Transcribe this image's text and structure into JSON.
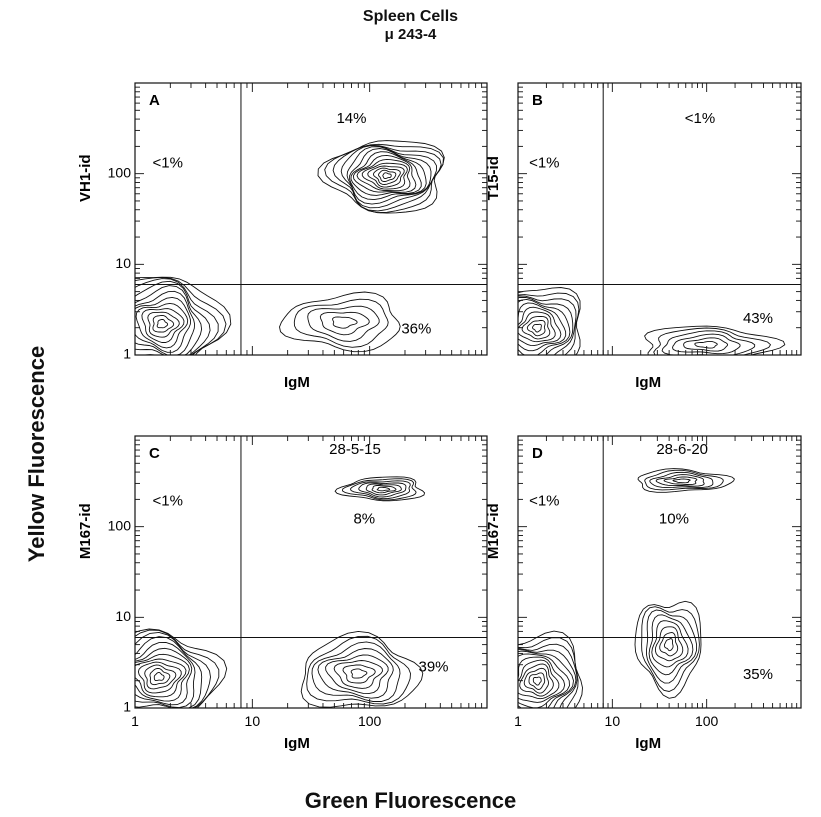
{
  "figure": {
    "title": "Spleen Cells",
    "subtitle": "μ 243-4",
    "y_axis_title": "Yellow Fluorescence",
    "x_axis_title": "Green Fluorescence"
  },
  "chart_data": [
    {
      "type": "contour",
      "panel": "A",
      "xlabel": "IgM",
      "ylabel": "VH1-id",
      "x_scale": "log",
      "y_scale": "log",
      "xlim": [
        1,
        1000
      ],
      "ylim": [
        1,
        1000
      ],
      "x_ticks": [],
      "y_ticks": [
        "1",
        "10",
        "100"
      ],
      "quadrant_gate": {
        "x": 8,
        "y": 6
      },
      "quadrant_labels": [
        {
          "text": "<1%",
          "x": 1.9,
          "y": 130
        },
        {
          "text": "14%",
          "x": 70,
          "y": 400
        },
        {
          "text": "36%",
          "x": 250,
          "y": 1.9
        }
      ],
      "populations": [
        {
          "x": 1.7,
          "y": 2.2,
          "x_spread": 0.5,
          "y_spread": 0.55,
          "levels": 12
        },
        {
          "x": 140,
          "y": 95,
          "x_spread": 0.5,
          "y_spread": 0.4,
          "levels": 14
        },
        {
          "x": 60,
          "y": 2.3,
          "x_spread": 0.5,
          "y_spread": 0.3,
          "levels": 5
        }
      ]
    },
    {
      "type": "contour",
      "panel": "B",
      "xlabel": "IgM",
      "ylabel": "T15-id",
      "x_scale": "log",
      "y_scale": "log",
      "xlim": [
        1,
        1000
      ],
      "ylim": [
        1,
        1000
      ],
      "x_ticks": [],
      "y_ticks": [],
      "quadrant_gate": {
        "x": 8,
        "y": 6
      },
      "quadrant_labels": [
        {
          "text": "<1%",
          "x": 1.9,
          "y": 130
        },
        {
          "text": "<1%",
          "x": 85,
          "y": 400
        },
        {
          "text": "43%",
          "x": 350,
          "y": 2.5
        }
      ],
      "populations": [
        {
          "x": 1.6,
          "y": 2.0,
          "x_spread": 0.5,
          "y_spread": 0.45,
          "levels": 11
        },
        {
          "x": 100,
          "y": 1.3,
          "x_spread": 0.7,
          "y_spread": 0.2,
          "levels": 6
        }
      ]
    },
    {
      "type": "contour",
      "panel": "C",
      "xlabel": "IgM",
      "ylabel": "M167-id",
      "x_scale": "log",
      "y_scale": "log",
      "xlim": [
        1,
        1000
      ],
      "ylim": [
        1,
        1000
      ],
      "x_ticks": [
        "1",
        "10",
        "100"
      ],
      "y_ticks": [
        "1",
        "10",
        "100"
      ],
      "quadrant_gate": {
        "x": 8,
        "y": 6
      },
      "quadrant_labels": [
        {
          "text": "<1%",
          "x": 1.9,
          "y": 190
        },
        {
          "text": "28-5-15",
          "x": 75,
          "y": 700
        },
        {
          "text": "8%",
          "x": 90,
          "y": 120
        },
        {
          "text": "39%",
          "x": 350,
          "y": 2.8
        }
      ],
      "populations": [
        {
          "x": 1.6,
          "y": 2.2,
          "x_spread": 0.5,
          "y_spread": 0.5,
          "levels": 12
        },
        {
          "x": 130,
          "y": 260,
          "x_spread": 0.35,
          "y_spread": 0.13,
          "levels": 7
        },
        {
          "x": 80,
          "y": 2.4,
          "x_spread": 0.5,
          "y_spread": 0.4,
          "levels": 8
        }
      ]
    },
    {
      "type": "contour",
      "panel": "D",
      "xlabel": "IgM",
      "ylabel": "M167-id",
      "x_scale": "log",
      "y_scale": "log",
      "xlim": [
        1,
        1000
      ],
      "ylim": [
        1,
        1000
      ],
      "x_ticks": [
        "1",
        "10",
        "100"
      ],
      "y_ticks": [],
      "quadrant_gate": {
        "x": 8,
        "y": 6
      },
      "quadrant_labels": [
        {
          "text": "<1%",
          "x": 1.9,
          "y": 190
        },
        {
          "text": "28-6-20",
          "x": 55,
          "y": 700
        },
        {
          "text": "10%",
          "x": 45,
          "y": 120
        },
        {
          "text": "35%",
          "x": 350,
          "y": 2.3
        }
      ],
      "populations": [
        {
          "x": 1.6,
          "y": 2.0,
          "x_spread": 0.5,
          "y_spread": 0.5,
          "levels": 12
        },
        {
          "x": 55,
          "y": 320,
          "x_spread": 0.5,
          "y_spread": 0.12,
          "levels": 6
        },
        {
          "x": 40,
          "y": 5,
          "x_spread": 0.35,
          "y_spread": 0.5,
          "levels": 8
        }
      ]
    }
  ]
}
